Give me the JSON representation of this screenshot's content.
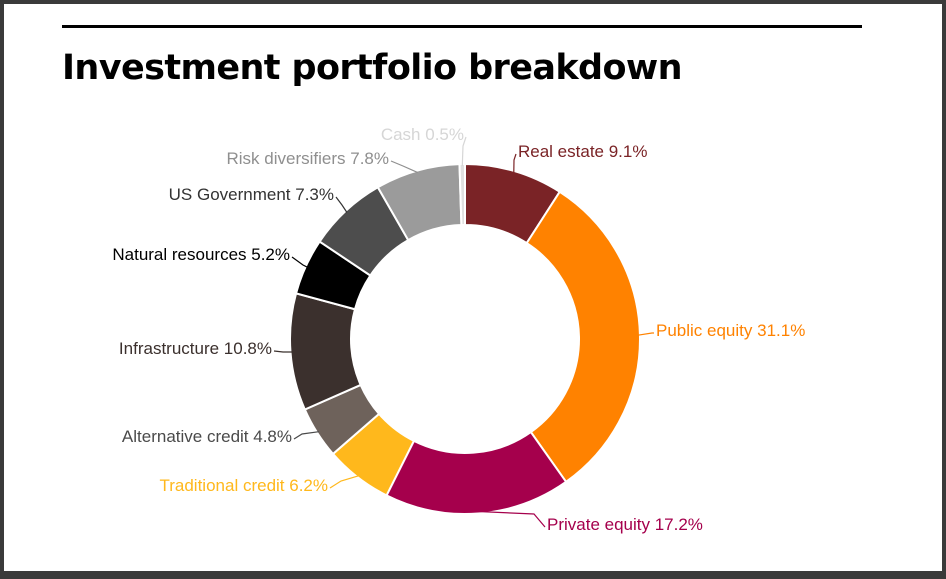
{
  "header": {
    "title": "Investment portfolio breakdown"
  },
  "chart_data": {
    "type": "pie",
    "title": "Investment portfolio breakdown",
    "donut": true,
    "unit": "%",
    "slices": [
      {
        "label": "Real estate",
        "value": 9.1,
        "color": "#7a2326",
        "label_color": "#7a2326"
      },
      {
        "label": "Public equity",
        "value": 31.1,
        "color": "#ff8200",
        "label_color": "#ff8200"
      },
      {
        "label": "Private equity",
        "value": 17.2,
        "color": "#a5004c",
        "label_color": "#a5004c"
      },
      {
        "label": "Traditional credit",
        "value": 6.2,
        "color": "#ffb81c",
        "label_color": "#ffb81c"
      },
      {
        "label": "Alternative credit",
        "value": 4.8,
        "color": "#6e625b",
        "label_color": "#4a4a4a"
      },
      {
        "label": "Infrastructure",
        "value": 10.8,
        "color": "#3b302d",
        "label_color": "#3b302d"
      },
      {
        "label": "Natural resources",
        "value": 5.2,
        "color": "#000000",
        "label_color": "#000000"
      },
      {
        "label": "US Government",
        "value": 7.3,
        "color": "#4d4d4d",
        "label_color": "#333333"
      },
      {
        "label": "Risk diversifiers",
        "value": 7.8,
        "color": "#9b9b9b",
        "label_color": "#8f8f8f"
      },
      {
        "label": "Cash",
        "value": 0.5,
        "color": "#e0e0e0",
        "label_color": "#d6d6d6"
      }
    ]
  }
}
